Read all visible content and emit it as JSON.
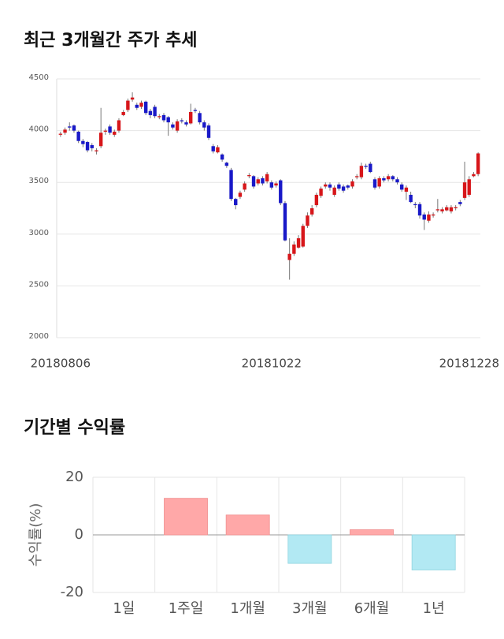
{
  "chart_data": [
    {
      "type": "candlestick",
      "title": "최근 3개월간 주가 추세",
      "up_color": "#d7161a",
      "down_color": "#1919c8",
      "ylim": [
        2000,
        4500
      ],
      "yticks": [
        2000,
        2500,
        3000,
        3500,
        4000,
        4500
      ],
      "grid": true,
      "categories": [
        "20180806",
        null,
        null,
        null,
        null,
        null,
        null,
        null,
        null,
        null,
        null,
        null,
        null,
        null,
        null,
        null,
        null,
        null,
        null,
        null,
        null,
        null,
        null,
        null,
        null,
        null,
        null,
        null,
        null,
        null,
        null,
        null,
        null,
        null,
        null,
        null,
        null,
        null,
        null,
        null,
        null,
        null,
        null,
        null,
        null,
        null,
        null,
        "20181022",
        null,
        null,
        null,
        null,
        null,
        null,
        null,
        null,
        null,
        null,
        null,
        null,
        null,
        null,
        null,
        null,
        null,
        null,
        null,
        null,
        null,
        null,
        null,
        null,
        null,
        null,
        null,
        null,
        null,
        null,
        null,
        null,
        null,
        null,
        null,
        null,
        null,
        null,
        null,
        null,
        null,
        null,
        null,
        null,
        null,
        "20181228"
      ],
      "open": [
        3960,
        3980,
        4040,
        4050,
        3990,
        3900,
        3890,
        3860,
        3800,
        3850,
        3990,
        4040,
        3960,
        4000,
        4150,
        4200,
        4300,
        4250,
        4230,
        4280,
        4190,
        4230,
        4130,
        4150,
        4130,
        4060,
        4000,
        4100,
        4080,
        4070,
        4200,
        4170,
        4080,
        4050,
        3850,
        3790,
        3770,
        3690,
        3620,
        3340,
        3360,
        3430,
        3560,
        3560,
        3490,
        3540,
        3510,
        3500,
        3470,
        3520,
        3300,
        2750,
        2810,
        2870,
        2880,
        3080,
        3190,
        3280,
        3370,
        3460,
        3480,
        3380,
        3480,
        3460,
        3470,
        3460,
        3550,
        3550,
        3660,
        3680,
        3530,
        3460,
        3540,
        3530,
        3560,
        3530,
        3480,
        3410,
        3380,
        3290,
        3290,
        3190,
        3130,
        3180,
        3230,
        3220,
        3230,
        3220,
        3250,
        3310,
        3350,
        3380,
        3560,
        3580
      ],
      "high": [
        3990,
        4030,
        4080,
        4060,
        4000,
        3920,
        3900,
        3880,
        3830,
        4220,
        4020,
        4060,
        4010,
        4120,
        4200,
        4310,
        4370,
        4270,
        4290,
        4290,
        4210,
        4250,
        4160,
        4170,
        4140,
        4080,
        4110,
        4120,
        4100,
        4260,
        4220,
        4190,
        4100,
        4070,
        3870,
        3860,
        3780,
        3700,
        3640,
        3350,
        3420,
        3510,
        3590,
        3570,
        3550,
        3560,
        3600,
        3520,
        3510,
        3530,
        3320,
        2960,
        2930,
        2990,
        3100,
        3210,
        3280,
        3400,
        3460,
        3500,
        3500,
        3470,
        3500,
        3480,
        3480,
        3530,
        3580,
        3690,
        3680,
        3700,
        3550,
        3560,
        3560,
        3580,
        3570,
        3550,
        3500,
        3470,
        3410,
        3310,
        3310,
        3210,
        3220,
        3210,
        3340,
        3260,
        3280,
        3280,
        3280,
        3330,
        3700,
        3560,
        3600,
        3790
      ],
      "low": [
        3940,
        3960,
        4000,
        3980,
        3880,
        3840,
        3790,
        3800,
        3770,
        3830,
        3960,
        3960,
        3940,
        3980,
        4140,
        4180,
        4280,
        4200,
        4210,
        4150,
        4120,
        4120,
        4110,
        4080,
        3950,
        4010,
        3980,
        4070,
        4040,
        4060,
        4170,
        4060,
        4000,
        3910,
        3780,
        3780,
        3700,
        3640,
        3320,
        3240,
        3340,
        3410,
        3540,
        3440,
        3470,
        3470,
        3490,
        3430,
        3450,
        3280,
        2930,
        2560,
        2790,
        2860,
        2870,
        3060,
        3170,
        3260,
        3350,
        3440,
        3420,
        3360,
        3420,
        3400,
        3430,
        3440,
        3530,
        3530,
        3630,
        3590,
        3430,
        3440,
        3500,
        3510,
        3510,
        3480,
        3410,
        3330,
        3300,
        3250,
        3150,
        3040,
        3110,
        3160,
        3210,
        3200,
        3220,
        3200,
        3230,
        3270,
        3330,
        3360,
        3550,
        3560
      ],
      "close": [
        3970,
        4010,
        4030,
        4000,
        3900,
        3870,
        3810,
        3830,
        3810,
        3980,
        4000,
        3980,
        3990,
        4100,
        4180,
        4290,
        4320,
        4220,
        4270,
        4170,
        4150,
        4140,
        4140,
        4100,
        4080,
        4030,
        4090,
        4090,
        4060,
        4180,
        4190,
        4080,
        4030,
        3930,
        3800,
        3840,
        3720,
        3660,
        3340,
        3280,
        3400,
        3490,
        3570,
        3460,
        3530,
        3490,
        3580,
        3450,
        3490,
        3300,
        2940,
        2810,
        2900,
        2960,
        3080,
        3180,
        3250,
        3380,
        3440,
        3480,
        3450,
        3450,
        3440,
        3420,
        3450,
        3510,
        3560,
        3660,
        3650,
        3600,
        3450,
        3540,
        3520,
        3560,
        3530,
        3500,
        3430,
        3450,
        3310,
        3280,
        3180,
        3140,
        3190,
        3190,
        3240,
        3240,
        3260,
        3260,
        3260,
        3290,
        3500,
        3530,
        3580,
        3780
      ]
    },
    {
      "type": "bar",
      "title": "기간별 수익률",
      "y_label": "수익률(%)",
      "categories": [
        "1일",
        "1주일",
        "1개월",
        "3개월",
        "6개월",
        "1년"
      ],
      "values": [
        0,
        12.7,
        6.9,
        -9.9,
        1.8,
        -12.2
      ],
      "positive_color": "#ffa8a8",
      "negative_color": "#b2e9f3",
      "ylim": [
        -20,
        20
      ],
      "yticks": [
        -20,
        0,
        20
      ],
      "grid": true
    }
  ]
}
